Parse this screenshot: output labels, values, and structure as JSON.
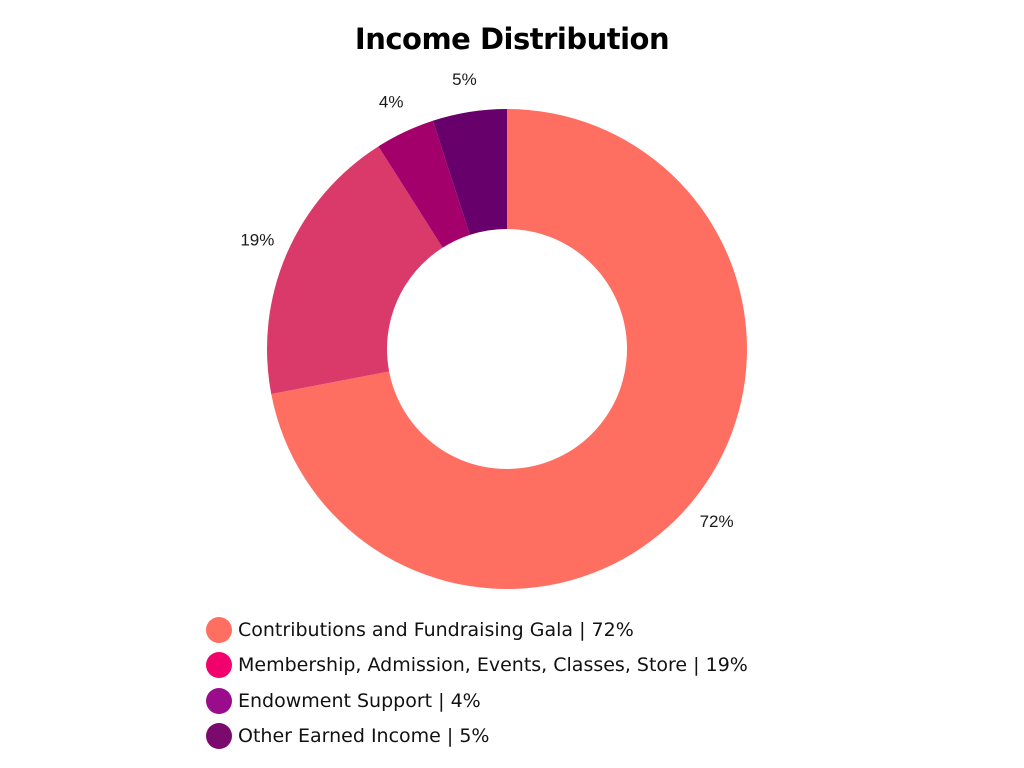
{
  "chart_data": {
    "type": "pie",
    "title": "Income Distribution",
    "donut": true,
    "start_angle_deg": 0,
    "slices": [
      {
        "name": "Contributions and Fundraising Gala",
        "value": 72,
        "label": "72%",
        "color": "#ff6f61"
      },
      {
        "name": "Membership, Admission, Events, Classes, Store",
        "value": 19,
        "label": "19%",
        "color": "#d93a6a"
      },
      {
        "name": "Endowment Support",
        "value": 4,
        "label": "4%",
        "color": "#a3006b"
      },
      {
        "name": "Other Earned Income",
        "value": 5,
        "label": "5%",
        "color": "#68006b"
      }
    ],
    "legend": {
      "position": "bottom",
      "items": [
        {
          "text": "Contributions and Fundraising Gala | 72%",
          "color": "#ff6f61"
        },
        {
          "text": "Membership, Admission, Events, Classes, Store | 19%",
          "color": "#f2006b"
        },
        {
          "text": "Endowment Support | 4%",
          "color": "#9a0c8c"
        },
        {
          "text": "Other Earned Income | 5%",
          "color": "#7a0a6e"
        }
      ]
    }
  }
}
